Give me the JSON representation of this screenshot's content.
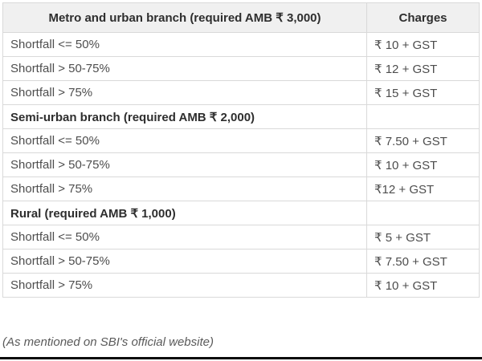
{
  "table": {
    "header": {
      "branch": "Metro and urban branch (required AMB ₹ 3,000)",
      "charges": "Charges"
    },
    "rows": [
      {
        "type": "data",
        "label": "Shortfall <= 50%",
        "charge": "₹ 10 + GST"
      },
      {
        "type": "data",
        "label": "Shortfall > 50-75%",
        "charge": "₹ 12 + GST"
      },
      {
        "type": "data",
        "label": "Shortfall > 75%",
        "charge": "₹ 15 + GST"
      },
      {
        "type": "section",
        "label": "Semi-urban branch (required AMB ₹ 2,000)",
        "charge": ""
      },
      {
        "type": "data",
        "label": "Shortfall <= 50%",
        "charge": "₹ 7.50 + GST"
      },
      {
        "type": "data",
        "label": "Shortfall > 50-75%",
        "charge": "₹ 10 + GST"
      },
      {
        "type": "data",
        "label": "Shortfall > 75%",
        "charge": "₹12 + GST"
      },
      {
        "type": "section",
        "label": "Rural (required AMB ₹ 1,000)",
        "charge": ""
      },
      {
        "type": "data",
        "label": "Shortfall <= 50%",
        "charge": "₹ 5 + GST"
      },
      {
        "type": "data",
        "label": "Shortfall > 50-75%",
        "charge": "₹ 7.50 + GST"
      },
      {
        "type": "data",
        "label": "Shortfall > 75%",
        "charge": "₹ 10 + GST"
      }
    ]
  },
  "footer": {
    "note": "(As mentioned on SBI's official website)"
  },
  "colors": {
    "header_background": "#f0f0f0",
    "border": "#d9d9d9",
    "body_text": "#4d4d4d",
    "bold_text": "#2e2e2e",
    "footer_text": "#5a5a5a",
    "bottom_bar": "#0a0a0a"
  }
}
